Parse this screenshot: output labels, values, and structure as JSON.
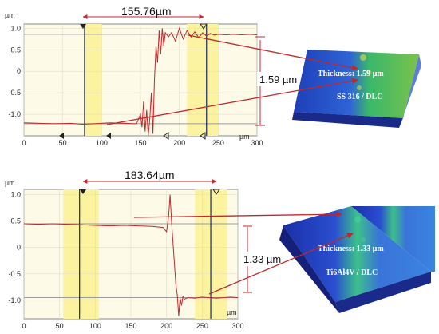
{
  "chart_data": [
    {
      "type": "line",
      "x_unit": "µm",
      "y_unit": "µm",
      "xlim": [
        0,
        300
      ],
      "ylim": [
        -1.5,
        1.1
      ],
      "x_ticks": [
        "0",
        "50",
        "100",
        "150",
        "200",
        "250",
        "300"
      ],
      "y_ticks": [
        "1.0",
        "0.5",
        "0",
        "-0.5",
        "-1.0"
      ],
      "width_label": "155.76µm",
      "step_label": "1.59 µm",
      "cursors_x": [
        78,
        235
      ],
      "highlight_bands_x": [
        [
          78,
          100
        ],
        [
          210,
          250
        ]
      ],
      "reference_lines_y": [
        0.86,
        -1.22
      ],
      "series": [
        {
          "x": [
            0,
            20,
            40,
            60,
            75,
            90,
            110,
            130,
            145,
            150,
            152,
            154,
            156,
            158,
            160,
            162,
            164,
            166,
            168,
            170,
            172,
            174,
            176,
            178,
            180,
            182,
            184,
            186,
            190,
            195,
            200,
            205,
            210,
            215,
            220,
            225,
            230,
            235,
            240,
            245,
            250,
            260,
            270,
            280,
            290,
            300
          ],
          "y": [
            -1.2,
            -1.21,
            -1.22,
            -1.21,
            -1.23,
            -1.22,
            -1.2,
            -1.21,
            -1.22,
            -1.0,
            -1.3,
            -0.7,
            -1.4,
            -0.9,
            -1.5,
            -1.1,
            -0.5,
            -1.45,
            -0.2,
            0.6,
            0.2,
            0.95,
            0.4,
            1.0,
            0.6,
            0.9,
            0.85,
            0.8,
            0.9,
            0.7,
            1.0,
            0.75,
            0.95,
            0.8,
            0.92,
            0.78,
            0.9,
            0.82,
            0.88,
            0.84,
            0.86,
            0.85,
            0.86,
            0.85,
            0.86,
            0.85
          ]
        }
      ],
      "specimen": {
        "thickness": "Thickness: 1.59 µm",
        "material": "SS 316 / DLC"
      }
    },
    {
      "type": "line",
      "x_unit": "µm",
      "y_unit": "µm",
      "xlim": [
        0,
        300
      ],
      "ylim": [
        -1.35,
        1.1
      ],
      "x_ticks": [
        "0",
        "50",
        "100",
        "150",
        "200",
        "250",
        "300"
      ],
      "y_ticks": [
        "1.0",
        "0.5",
        "0",
        "-0.5",
        "-1.0"
      ],
      "width_label": "183.64µm",
      "step_label": "1.33 µm",
      "cursors_x": [
        78,
        262
      ],
      "highlight_bands_x": [
        [
          55,
          105
        ],
        [
          240,
          285
        ]
      ],
      "reference_lines_y": [
        0.45,
        -0.95
      ],
      "series": [
        {
          "x": [
            0,
            20,
            40,
            60,
            80,
            100,
            120,
            140,
            160,
            180,
            195,
            200,
            203,
            205,
            207,
            209,
            211,
            213,
            215,
            217,
            219,
            221,
            223,
            225,
            230,
            240,
            250,
            260,
            270,
            280,
            290,
            300
          ],
          "y": [
            0.45,
            0.44,
            0.45,
            0.44,
            0.43,
            0.42,
            0.41,
            0.42,
            0.41,
            0.4,
            0.38,
            0.3,
            0.6,
            1.0,
            0.5,
            0.1,
            -0.3,
            -0.7,
            -0.9,
            -1.3,
            -0.95,
            -1.1,
            -0.93,
            -0.98,
            -0.95,
            -0.96,
            -0.94,
            -0.95,
            -0.96,
            -0.95,
            -0.94,
            -0.95
          ]
        }
      ],
      "specimen": {
        "thickness": "Thickness: 1.33 µm",
        "material": "Ti6Al4V / DLC"
      }
    }
  ]
}
